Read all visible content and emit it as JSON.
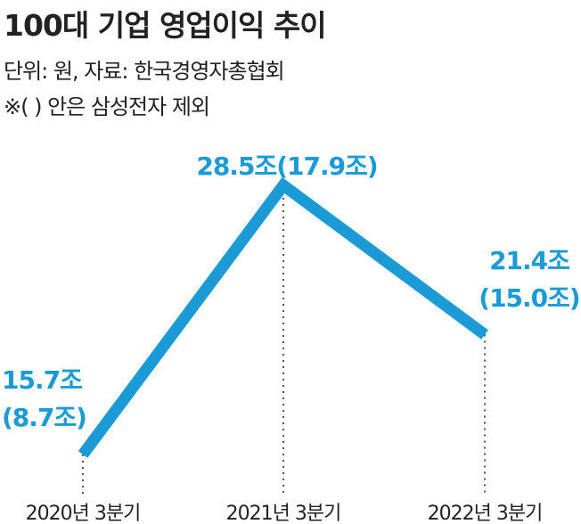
{
  "title": "100대 기업 영업이익 추이",
  "unit_note": "단위: 원, 자료: 한국경영자총협회",
  "footnote": "※( ) 안은 삼성전자 제외",
  "chart_data": {
    "type": "line",
    "title": "100대 기업 영업이익 추이",
    "categories": [
      "2020년 3분기",
      "2021년 3분기",
      "2022년 3분기"
    ],
    "series": [
      {
        "values": [
          15.7,
          28.5,
          21.4
        ]
      }
    ],
    "value_labels": [
      "15.7조",
      "28.5조(17.9조)",
      "21.4조"
    ],
    "sub_values_excluding_samsung": [
      8.7,
      17.9,
      15.0
    ],
    "sub_labels": [
      "(8.7조)",
      "",
      "(15.0조)"
    ],
    "ylim": [
      14.5,
      29.5
    ],
    "grid": false,
    "line_color": "#1b9ad6",
    "label_color": "#1b9ad6",
    "drop_line_color": "#555555"
  }
}
